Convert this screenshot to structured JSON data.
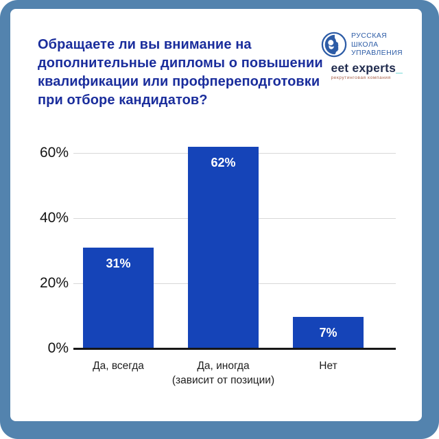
{
  "page": {
    "frame_color": "#5383ae",
    "card_color": "#ffffff"
  },
  "header": {
    "title_lines": [
      "Обращаете ли вы внимание на",
      "дополнительные дипломы о повышении",
      "квалификации или профпереподготовки",
      "при отборе кандидатов?"
    ],
    "title_color": "#1a2d9c"
  },
  "logos": {
    "rshu": {
      "lines": [
        "РУССКАЯ",
        "ШКОЛА",
        "УПРАВЛЕНИЯ"
      ],
      "color": "#2d5ca6"
    },
    "eet": {
      "name": "eet experts",
      "cursor": "_",
      "tagline": "рекрутинговая компания",
      "name_color": "#222d4f",
      "cursor_color": "#2ec4c2",
      "tagline_color": "#a65c44"
    }
  },
  "chart_data": {
    "type": "bar",
    "title": "Обращаете ли вы внимание на дополнительные дипломы о повышении квалификации или профпереподготовки при отборе кандидатов?",
    "categories": [
      "Да, всегда",
      "Да, иногда (зависит от позиции)",
      "Нет"
    ],
    "categories_display": [
      [
        "Да, всегда"
      ],
      [
        "Да, иногда",
        "(зависит от позиции)"
      ],
      [
        "Нет"
      ]
    ],
    "values": [
      31,
      62,
      7
    ],
    "value_labels": [
      "31%",
      "62%",
      "7%"
    ],
    "xlabel": "",
    "ylabel": "",
    "ylim": [
      0,
      65
    ],
    "yticks": [
      0,
      20,
      40,
      60
    ],
    "ytick_labels": [
      "0%",
      "20%",
      "40%",
      "60%"
    ],
    "grid": true,
    "legend": false,
    "bar_color": "#1544b8",
    "value_label_color": "#ffffff",
    "gridline_color": "#d8d8d8",
    "baseline_color": "#161616"
  }
}
